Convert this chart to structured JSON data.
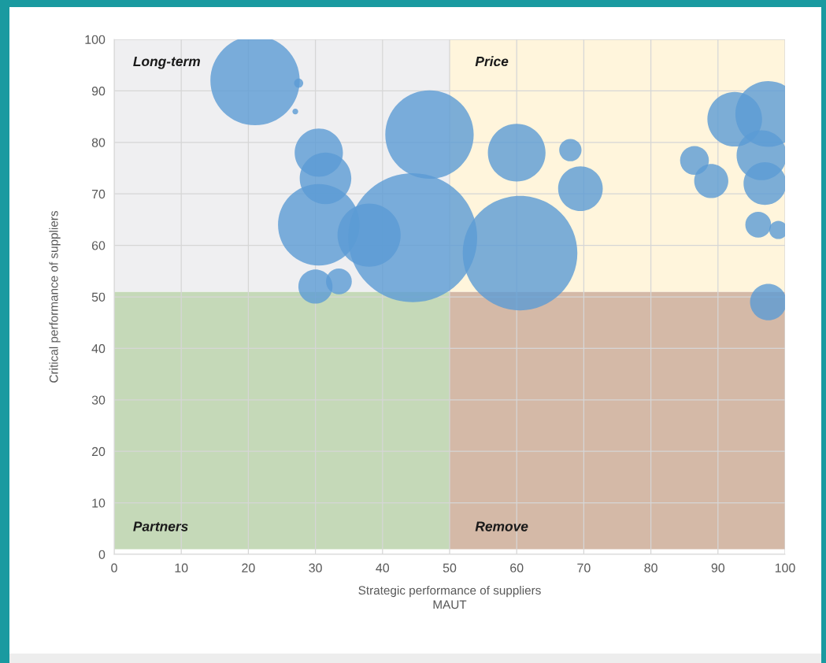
{
  "chart_data": {
    "type": "bubble",
    "xlabel": "Strategic performance of suppliers\nMAUT",
    "ylabel": "Critical performance of suppliers",
    "series": [
      {
        "type": "bar",
        "x": [
          25,
          75
        ],
        "base": [
          1,
          1
        ],
        "values": [
          50,
          50
        ],
        "colors": [
          "#c5d9b8",
          "#d4b9a7"
        ]
      },
      {
        "type": "bar",
        "x": [
          25,
          75
        ],
        "base": [
          51,
          51
        ],
        "values": [
          49,
          49
        ],
        "colors": [
          "#efeff1",
          "#fff5dc"
        ]
      },
      {
        "color": "#5b9bd5",
        "x": [
          21,
          27.5,
          27,
          30.5,
          31.5,
          30.5,
          38,
          44.5,
          47,
          30,
          33.5,
          60.5,
          60,
          68,
          69.5,
          86.5,
          89,
          92.5,
          97.5,
          96.5,
          97,
          96,
          99,
          97.5
        ],
        "values": [
          92,
          91.5,
          86,
          78,
          73,
          64,
          62,
          61.5,
          81.5,
          52,
          53,
          58.5,
          78,
          78.5,
          71,
          76.5,
          72.5,
          84.5,
          85.5,
          77.5,
          72,
          64,
          63,
          49
        ],
        "sizes": [
          0.48,
          0.005,
          0.002,
          0.14,
          0.16,
          0.4,
          0.24,
          1,
          0.47,
          0.07,
          0.04,
          0.79,
          0.2,
          0.03,
          0.12,
          0.05,
          0.07,
          0.18,
          0.26,
          0.15,
          0.11,
          0.04,
          0.02,
          0.08
        ]
      }
    ],
    "marker": "circle",
    "xlim": [
      0,
      100
    ],
    "ylim": [
      0,
      100
    ],
    "xticks": [
      0,
      10,
      20,
      30,
      40,
      50,
      60,
      70,
      80,
      90,
      100
    ],
    "yticks": [
      0,
      10,
      20,
      30,
      40,
      50,
      60,
      70,
      80,
      90,
      100
    ],
    "grid": true,
    "annotations": [
      "Long-term",
      "Price",
      "Partners",
      "Remove"
    ]
  }
}
